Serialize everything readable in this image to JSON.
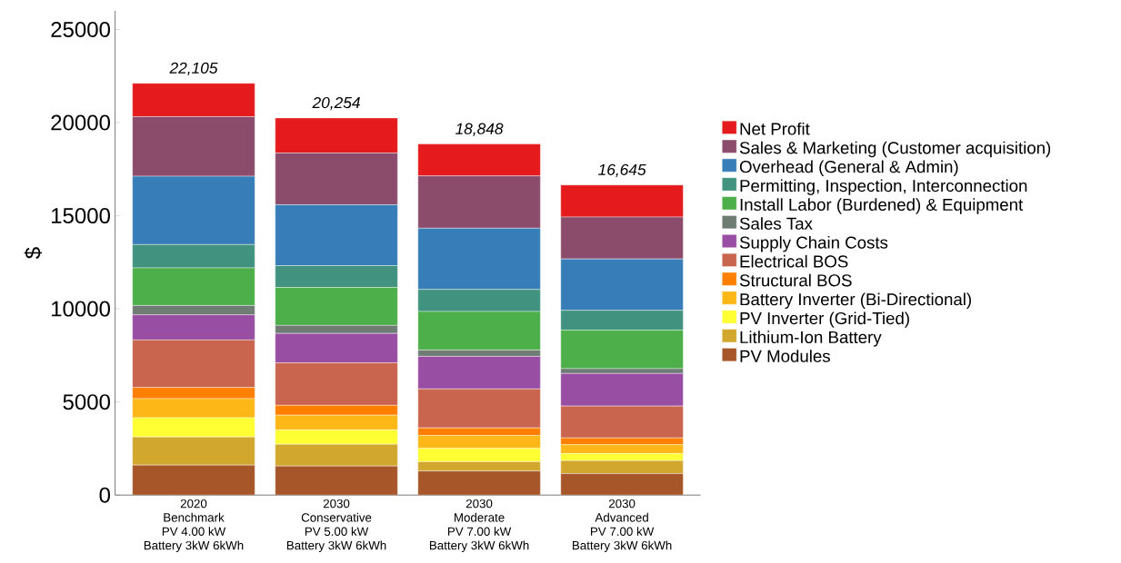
{
  "chart_data": {
    "type": "bar",
    "stacked": true,
    "ylabel": "$",
    "categories": [
      "2020\nBenchmark\nPV 4.00 kW\nBattery 3kW 6kWh",
      "2030\nConservative\nPV 5.00 kW\nBattery 3kW 6kWh",
      "2030\nModerate\nPV 7.00 kW\nBattery 3kW 6kWh",
      "2030\nAdvanced\nPV 7.00 kW\nBattery 3kW 6kWh"
    ],
    "ylim": [
      0,
      26000
    ],
    "yticks": [
      0,
      5000,
      10000,
      15000,
      20000,
      25000
    ],
    "grid": false,
    "legend": "right",
    "totals": [
      "22,105",
      "20,254",
      "18,848",
      "16,645"
    ],
    "series": [
      {
        "name": "PV Modules",
        "color": "#a65628",
        "values": [
          1610,
          1560,
          1290,
          1150
        ]
      },
      {
        "name": "Lithium-Ion Battery",
        "color": "#d2a72e",
        "values": [
          1510,
          1170,
          500,
          700
        ]
      },
      {
        "name": "PV Inverter (Grid-Tied)",
        "color": "#ffff33",
        "values": [
          1030,
          770,
          720,
          380
        ]
      },
      {
        "name": "Battery Inverter (Bi-Directional)",
        "color": "#fdb817",
        "values": [
          1030,
          790,
          690,
          480
        ]
      },
      {
        "name": "Structural BOS",
        "color": "#ff7f00",
        "values": [
          600,
          530,
          410,
          360
        ]
      },
      {
        "name": "Electrical BOS",
        "color": "#c9654f",
        "values": [
          2550,
          2280,
          2090,
          1710
        ]
      },
      {
        "name": "Supply Chain Costs",
        "color": "#984ea3",
        "values": [
          1350,
          1580,
          1750,
          1750
        ]
      },
      {
        "name": "Sales Tax",
        "color": "#6f7c74",
        "values": [
          500,
          430,
          340,
          260
        ]
      },
      {
        "name": "Install Labor (Burdened) & Equipment",
        "color": "#4daf4a",
        "values": [
          2020,
          2040,
          2070,
          2070
        ]
      },
      {
        "name": "Permitting, Inspection, Interconnection",
        "color": "#41927f",
        "values": [
          1250,
          1170,
          1180,
          1060
        ]
      },
      {
        "name": "Overhead (General & Admin)",
        "color": "#377eb8",
        "values": [
          3670,
          3270,
          3290,
          2760
        ]
      },
      {
        "name": "Sales & Marketing (Customer acquisition)",
        "color": "#8b4c6b",
        "values": [
          3200,
          2780,
          2810,
          2250
        ]
      },
      {
        "name": "Net Profit",
        "color": "#e41a1c",
        "values": [
          1790,
          1880,
          1710,
          1720
        ]
      }
    ]
  }
}
